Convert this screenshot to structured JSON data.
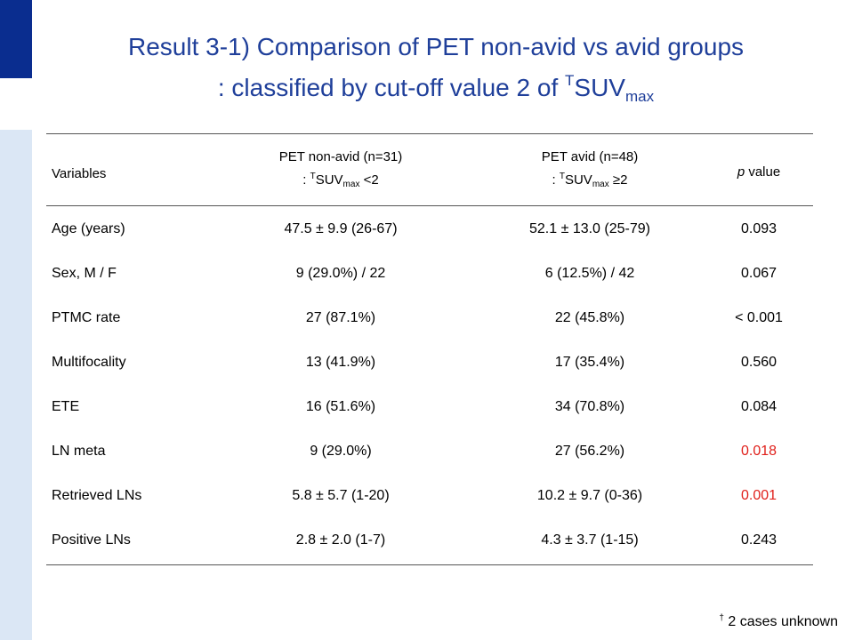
{
  "title": {
    "line1": "Result 3-1) Comparison of PET non-avid vs avid groups",
    "line2_prefix": ": classified by cut-off value 2 of ",
    "line2_sup": "T",
    "line2_main": "SUV",
    "line2_sub": "max"
  },
  "header": {
    "variables": "Variables",
    "nonavid_line1": "PET non-avid (n=31)",
    "nonavid_prefix": ": ",
    "nonavid_sup": "T",
    "nonavid_main": "SUV",
    "nonavid_sub": "max",
    "nonavid_cond": " <2",
    "avid_line1": "PET avid (n=48)",
    "avid_prefix": ": ",
    "avid_sup": "T",
    "avid_main": "SUV",
    "avid_sub": "max",
    "avid_cond": " ≥2",
    "p_italic": "p",
    "p_rest": " value"
  },
  "rows": [
    {
      "variable": "Age (years)",
      "nonavid": "47.5 ± 9.9 (26-67)",
      "avid": "52.1 ± 13.0 (25-79)",
      "p": "0.093"
    },
    {
      "variable": "Sex, M / F",
      "nonavid": "9 (29.0%) / 22",
      "avid": "6 (12.5%) / 42",
      "p": "0.067"
    },
    {
      "variable": "PTMC rate",
      "nonavid": "27 (87.1%)",
      "avid": "22 (45.8%)",
      "p": "< 0.001"
    },
    {
      "variable": "Multifocality",
      "nonavid": "13 (41.9%)",
      "avid": "17 (35.4%)",
      "p": "0.560"
    },
    {
      "variable": "ETE",
      "nonavid": "16 (51.6%)",
      "avid": "34 (70.8%)",
      "p": "0.084"
    },
    {
      "variable": "LN meta",
      "nonavid": "9 (29.0%)",
      "avid": "27 (56.2%)",
      "p": "0.018"
    },
    {
      "variable": "Retrieved LNs",
      "nonavid": "5.8 ± 5.7 (1-20)",
      "avid": "10.2 ± 9.7 (0-36)",
      "p": "0.001"
    },
    {
      "variable": "Positive LNs",
      "nonavid": "2.8 ± 2.0 (1-7)",
      "avid": "4.3 ± 3.7 (1-15)",
      "p": "0.243"
    }
  ],
  "footnote": {
    "mark": "†",
    "text": " 2 cases unknown"
  },
  "colors": {
    "title": "#1f3f9a",
    "accent_bar": "#0a2d8f",
    "side_bar": "#dbe7f5",
    "significant": "#e0201b"
  }
}
